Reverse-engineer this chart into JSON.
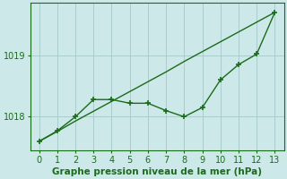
{
  "x": [
    0,
    1,
    2,
    3,
    4,
    5,
    6,
    7,
    8,
    9,
    10,
    11,
    12,
    13
  ],
  "smooth_line": [
    1017.6,
    1017.76,
    1017.93,
    1018.09,
    1018.25,
    1018.41,
    1018.57,
    1018.73,
    1018.9,
    1019.06,
    1019.22,
    1019.38,
    1019.54,
    1019.7
  ],
  "marker_line": [
    1017.6,
    1017.77,
    1018.0,
    1018.28,
    1018.28,
    1018.22,
    1018.22,
    1018.1,
    1018.0,
    1018.15,
    1018.6,
    1018.85,
    1019.02,
    1019.7
  ],
  "color": "#1a6b1a",
  "bg_color": "#cce8e8",
  "grid_color": "#aacccc",
  "xlabel": "Graphe pression niveau de la mer (hPa)",
  "ylim": [
    1017.45,
    1019.85
  ],
  "yticks": [
    1018,
    1019
  ],
  "xticks": [
    0,
    1,
    2,
    3,
    4,
    5,
    6,
    7,
    8,
    9,
    10,
    11,
    12,
    13
  ],
  "line_width": 1.0,
  "marker": "+",
  "marker_size": 4,
  "marker_edge_width": 1.2,
  "xlabel_fontsize": 7.5,
  "tick_fontsize": 7
}
